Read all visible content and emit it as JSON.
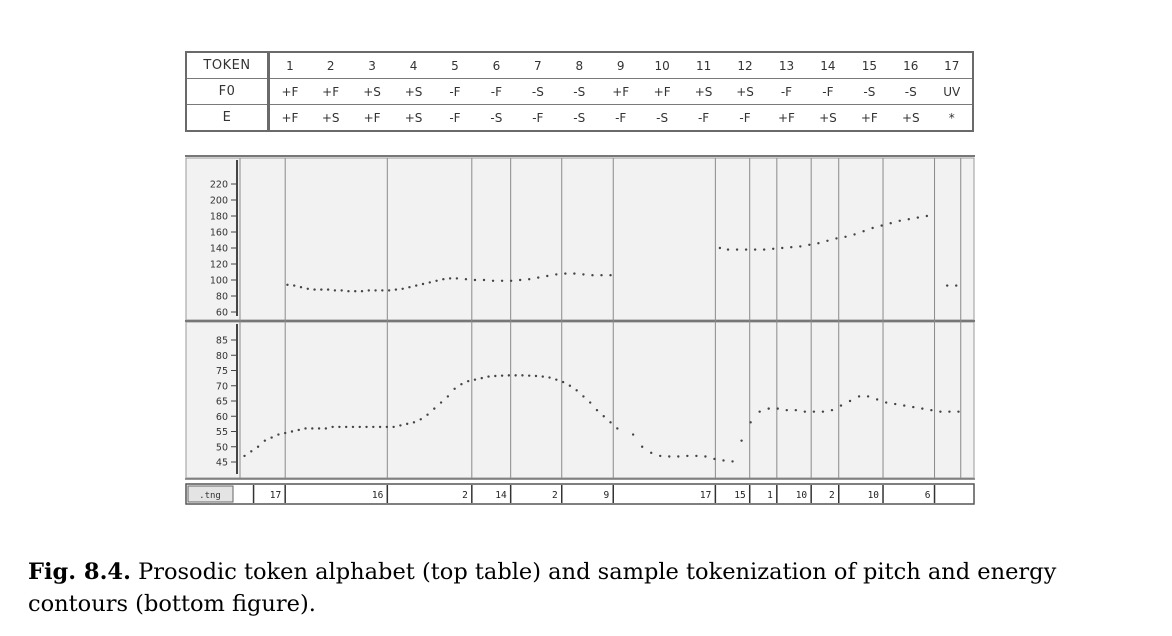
{
  "token_table": {
    "header_label": "TOKEN",
    "tokens": [
      "1",
      "2",
      "3",
      "4",
      "5",
      "6",
      "7",
      "8",
      "9",
      "10",
      "11",
      "12",
      "13",
      "14",
      "15",
      "16",
      "17"
    ],
    "rows": [
      {
        "label": "F0",
        "values": [
          "+F",
          "+F",
          "+S",
          "+S",
          "-F",
          "-F",
          "-S",
          "-S",
          "+F",
          "+F",
          "+S",
          "+S",
          "-F",
          "-F",
          "-S",
          "-S",
          "UV"
        ]
      },
      {
        "label": "E",
        "values": [
          "+F",
          "+S",
          "+F",
          "+S",
          "-F",
          "-S",
          "-F",
          "-S",
          "-F",
          "-S",
          "-F",
          "-F",
          "+F",
          "+S",
          "+F",
          "+S",
          "*"
        ]
      }
    ]
  },
  "chart_data": [
    {
      "type": "scatter",
      "yticks": [
        "220",
        "200",
        "180",
        "160",
        "140",
        "120",
        "100",
        "80",
        "60"
      ],
      "ylim": [
        60,
        220
      ],
      "grid": false,
      "segment_boundaries": [
        0,
        0.1,
        0.326,
        0.513,
        0.599,
        0.712,
        0.826,
        1.052,
        1.128,
        1.188,
        1.264,
        1.325,
        1.423,
        1.537,
        1.595
      ],
      "series": [
        {
          "x": [
            0.105,
            0.12,
            0.135,
            0.15,
            0.165,
            0.18,
            0.195,
            0.21,
            0.225,
            0.24,
            0.255,
            0.27,
            0.285,
            0.3,
            0.315,
            0.33,
            0.345,
            0.36,
            0.375,
            0.39,
            0.405,
            0.42,
            0.435,
            0.45,
            0.465,
            0.48,
            0.5,
            0.52,
            0.54,
            0.56,
            0.58,
            0.6,
            0.62,
            0.64,
            0.66,
            0.68,
            0.7,
            0.72,
            0.74,
            0.76,
            0.78,
            0.8,
            0.82
          ],
          "y": [
            94,
            93,
            91,
            89,
            88,
            88,
            88,
            87,
            87,
            86,
            86,
            86,
            87,
            87,
            87,
            87,
            88,
            89,
            91,
            93,
            95,
            97,
            99,
            101,
            102,
            102,
            101,
            100,
            100,
            99,
            99,
            99,
            100,
            101,
            103,
            105,
            107,
            108,
            108,
            107,
            106,
            106,
            106
          ]
        },
        {
          "x": [
            1.062,
            1.08,
            1.1,
            1.12,
            1.14,
            1.16,
            1.18,
            1.2,
            1.22,
            1.24,
            1.26,
            1.28,
            1.3,
            1.32,
            1.34,
            1.36,
            1.38,
            1.4,
            1.42,
            1.44,
            1.46,
            1.48,
            1.5,
            1.52
          ],
          "y": [
            140,
            138,
            138,
            138,
            138,
            138,
            139,
            140,
            141,
            142,
            144,
            146,
            149,
            152,
            154,
            157,
            161,
            165,
            168,
            171,
            174,
            176,
            178,
            180
          ]
        },
        {
          "x": [
            1.565,
            1.585
          ],
          "y": [
            93,
            93
          ]
        }
      ]
    },
    {
      "type": "scatter",
      "yticks": [
        "85",
        "80",
        "75",
        "70",
        "65",
        "60",
        "55",
        "50",
        "45"
      ],
      "ylim": [
        45,
        85
      ],
      "grid": false,
      "series": [
        {
          "x": [
            0.01,
            0.025,
            0.04,
            0.055,
            0.07,
            0.085,
            0.1,
            0.115,
            0.13,
            0.145,
            0.16,
            0.175,
            0.19,
            0.205,
            0.22,
            0.235,
            0.25,
            0.265,
            0.28,
            0.295,
            0.31,
            0.325,
            0.34,
            0.355,
            0.37,
            0.385,
            0.4,
            0.415,
            0.43,
            0.445,
            0.46,
            0.475,
            0.49,
            0.505,
            0.52,
            0.535,
            0.55,
            0.565,
            0.58,
            0.595,
            0.61,
            0.625,
            0.64,
            0.655,
            0.67,
            0.685,
            0.7,
            0.715,
            0.73,
            0.745,
            0.76,
            0.775,
            0.79,
            0.805,
            0.82,
            0.835
          ],
          "y": [
            47,
            48.5,
            50,
            52,
            53,
            54,
            54.5,
            55,
            55.5,
            56,
            56,
            56,
            56,
            56.5,
            56.5,
            56.5,
            56.5,
            56.5,
            56.5,
            56.5,
            56.5,
            56.5,
            56.5,
            57,
            57.5,
            58,
            59,
            60.5,
            62.5,
            64.5,
            66.5,
            69,
            70.5,
            71.5,
            72,
            72.5,
            73,
            73.2,
            73.3,
            73.4,
            73.4,
            73.4,
            73.3,
            73.2,
            73,
            72.7,
            72,
            71.2,
            70,
            68.5,
            66.5,
            64.5,
            62,
            60,
            58,
            56
          ]
        },
        {
          "x": [
            0.87,
            0.89,
            0.91,
            0.93,
            0.95,
            0.97,
            0.99,
            1.01,
            1.03,
            1.05,
            1.07,
            1.09,
            1.11,
            1.13,
            1.15,
            1.17,
            1.19,
            1.21,
            1.23,
            1.25,
            1.27,
            1.29,
            1.31,
            1.33,
            1.35,
            1.37,
            1.39,
            1.41,
            1.43,
            1.45,
            1.47,
            1.49,
            1.51,
            1.53,
            1.55,
            1.57,
            1.59
          ],
          "y": [
            54,
            50,
            48,
            47,
            46.8,
            46.8,
            47,
            47,
            46.8,
            46,
            45.5,
            45.2,
            52,
            58,
            61.5,
            62.5,
            62.5,
            62,
            62,
            61.5,
            61.5,
            61.5,
            62,
            63.5,
            65,
            66.5,
            66.5,
            65.5,
            64.5,
            64,
            63.5,
            63,
            62.5,
            62,
            61.5,
            61.5,
            61.5
          ]
        }
      ]
    }
  ],
  "token_strip": {
    "label": ".tng",
    "values": [
      "17",
      "16",
      "2",
      "14",
      "2",
      "9",
      "17",
      "15",
      "1",
      "10",
      "2",
      "10",
      "6"
    ]
  },
  "caption": {
    "label": "Fig. 8.4.",
    "text": "Prosodic token alphabet (top table) and sample tokenization of pitch and energy contours (bottom figure)."
  }
}
